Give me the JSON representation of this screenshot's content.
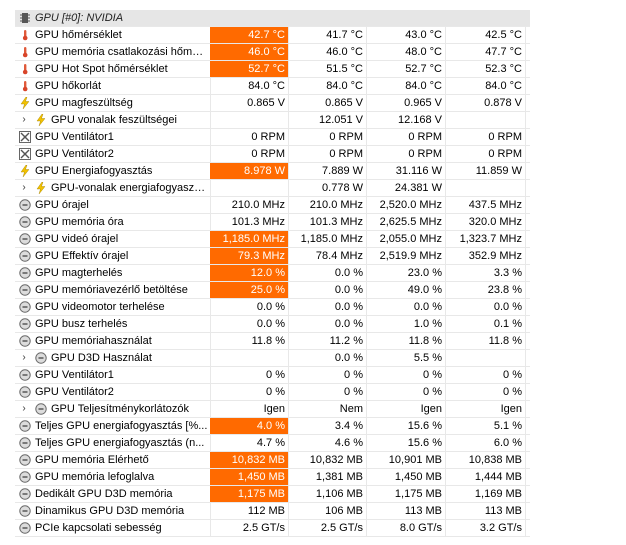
{
  "colors": {
    "highlight": "#ff6a00",
    "gridline": "#e8e8e8",
    "header_bg": "#e6e6e6"
  },
  "header": {
    "title": "GPU [#0]: NVIDIA",
    "icon": "chip-icon"
  },
  "rows": [
    {
      "label": "GPU hőmérséklet",
      "icon": "thermometer-icon",
      "indent": 0,
      "v": [
        "42.7 °C",
        "41.7 °C",
        "43.0 °C",
        "42.5 °C"
      ],
      "hl": true
    },
    {
      "label": "GPU memória csatlakozási hőmérs...",
      "icon": "thermometer-icon",
      "indent": 0,
      "v": [
        "46.0 °C",
        "46.0 °C",
        "48.0 °C",
        "47.7 °C"
      ],
      "hl": true
    },
    {
      "label": "GPU Hot Spot hőmérséklet",
      "icon": "thermometer-icon",
      "indent": 0,
      "v": [
        "52.7 °C",
        "51.5 °C",
        "52.7 °C",
        "52.3 °C"
      ],
      "hl": true
    },
    {
      "label": "GPU hőkorlát",
      "icon": "thermometer-icon",
      "indent": 0,
      "v": [
        "84.0 °C",
        "84.0 °C",
        "84.0 °C",
        "84.0 °C"
      ],
      "hl": false
    },
    {
      "label": "GPU magfeszültség",
      "icon": "lightning-icon",
      "indent": 0,
      "v": [
        "0.865 V",
        "0.865 V",
        "0.965 V",
        "0.878 V"
      ],
      "hl": false
    },
    {
      "label": "GPU vonalak feszültségei",
      "icon": "lightning-icon",
      "indent": 1,
      "v": [
        "",
        "12.051 V",
        "12.168 V",
        ""
      ],
      "hl": false
    },
    {
      "label": "GPU Ventilátor1",
      "icon": "fan-icon",
      "indent": 0,
      "v": [
        "0 RPM",
        "0 RPM",
        "0 RPM",
        "0 RPM"
      ],
      "hl": false
    },
    {
      "label": "GPU Ventilátor2",
      "icon": "fan-icon",
      "indent": 0,
      "v": [
        "0 RPM",
        "0 RPM",
        "0 RPM",
        "0 RPM"
      ],
      "hl": false
    },
    {
      "label": "GPU Energiafogyasztás",
      "icon": "lightning-icon",
      "indent": 0,
      "v": [
        "8.978 W",
        "7.889 W",
        "31.116 W",
        "11.859 W"
      ],
      "hl": true
    },
    {
      "label": "GPU-vonalak energiafogyasztá...",
      "icon": "lightning-icon",
      "indent": 1,
      "v": [
        "",
        "0.778 W",
        "24.381 W",
        ""
      ],
      "hl": false
    },
    {
      "label": "GPU órajel",
      "icon": "clock-icon",
      "indent": 0,
      "v": [
        "210.0 MHz",
        "210.0 MHz",
        "2,520.0 MHz",
        "437.5 MHz"
      ],
      "hl": false
    },
    {
      "label": "GPU memória óra",
      "icon": "clock-icon",
      "indent": 0,
      "v": [
        "101.3 MHz",
        "101.3 MHz",
        "2,625.5 MHz",
        "320.0 MHz"
      ],
      "hl": false
    },
    {
      "label": "GPU videó órajel",
      "icon": "clock-icon",
      "indent": 0,
      "v": [
        "1,185.0 MHz",
        "1,185.0 MHz",
        "2,055.0 MHz",
        "1,323.7 MHz"
      ],
      "hl": true
    },
    {
      "label": "GPU Effektív órajel",
      "icon": "clock-icon",
      "indent": 0,
      "v": [
        "79.3 MHz",
        "78.4 MHz",
        "2,519.9 MHz",
        "352.9 MHz"
      ],
      "hl": true
    },
    {
      "label": "GPU magterhelés",
      "icon": "clock-icon",
      "indent": 0,
      "v": [
        "12.0 %",
        "0.0 %",
        "23.0 %",
        "3.3 %"
      ],
      "hl": true
    },
    {
      "label": "GPU memóriavezérlő betöltése",
      "icon": "clock-icon",
      "indent": 0,
      "v": [
        "25.0 %",
        "0.0 %",
        "49.0 %",
        "23.8 %"
      ],
      "hl": true
    },
    {
      "label": "GPU videomotor terhelése",
      "icon": "clock-icon",
      "indent": 0,
      "v": [
        "0.0 %",
        "0.0 %",
        "0.0 %",
        "0.0 %"
      ],
      "hl": false
    },
    {
      "label": "GPU busz terhelés",
      "icon": "clock-icon",
      "indent": 0,
      "v": [
        "0.0 %",
        "0.0 %",
        "1.0 %",
        "0.1 %"
      ],
      "hl": false
    },
    {
      "label": "GPU memóriahasználat",
      "icon": "clock-icon",
      "indent": 0,
      "v": [
        "11.8 %",
        "11.2 %",
        "11.8 %",
        "11.8 %"
      ],
      "hl": false
    },
    {
      "label": "GPU D3D Használat",
      "icon": "clock-icon",
      "indent": 1,
      "v": [
        "",
        "0.0 %",
        "5.5 %",
        ""
      ],
      "hl": false
    },
    {
      "label": "GPU Ventilátor1",
      "icon": "clock-icon",
      "indent": 0,
      "v": [
        "0 %",
        "0 %",
        "0 %",
        "0 %"
      ],
      "hl": false
    },
    {
      "label": "GPU Ventilátor2",
      "icon": "clock-icon",
      "indent": 0,
      "v": [
        "0 %",
        "0 %",
        "0 %",
        "0 %"
      ],
      "hl": false
    },
    {
      "label": "GPU Teljesítménykorlátozók",
      "icon": "clock-icon",
      "indent": 1,
      "v": [
        "Igen",
        "Nem",
        "Igen",
        "Igen"
      ],
      "hl": false
    },
    {
      "label": "Teljes GPU energiafogyasztás [%...",
      "icon": "clock-icon",
      "indent": 0,
      "v": [
        "4.0 %",
        "3.4 %",
        "15.6 %",
        "5.1 %"
      ],
      "hl": true
    },
    {
      "label": "Teljes GPU energiafogyasztás (n...",
      "icon": "clock-icon",
      "indent": 0,
      "v": [
        "4.7 %",
        "4.6 %",
        "15.6 %",
        "6.0 %"
      ],
      "hl": false
    },
    {
      "label": "GPU memória Elérhető",
      "icon": "clock-icon",
      "indent": 0,
      "v": [
        "10,832 MB",
        "10,832 MB",
        "10,901 MB",
        "10,838 MB"
      ],
      "hl": true
    },
    {
      "label": "GPU memória lefoglalva",
      "icon": "clock-icon",
      "indent": 0,
      "v": [
        "1,450 MB",
        "1,381 MB",
        "1,450 MB",
        "1,444 MB"
      ],
      "hl": true
    },
    {
      "label": "Dedikált GPU D3D memória",
      "icon": "clock-icon",
      "indent": 0,
      "v": [
        "1,175 MB",
        "1,106 MB",
        "1,175 MB",
        "1,169 MB"
      ],
      "hl": true
    },
    {
      "label": "Dinamikus GPU D3D memória",
      "icon": "clock-icon",
      "indent": 0,
      "v": [
        "112 MB",
        "106 MB",
        "113 MB",
        "113 MB"
      ],
      "hl": false
    },
    {
      "label": "PCIe kapcsolati sebesség",
      "icon": "clock-icon",
      "indent": 0,
      "v": [
        "2.5 GT/s",
        "2.5 GT/s",
        "8.0 GT/s",
        "3.2 GT/s"
      ],
      "hl": false
    }
  ]
}
